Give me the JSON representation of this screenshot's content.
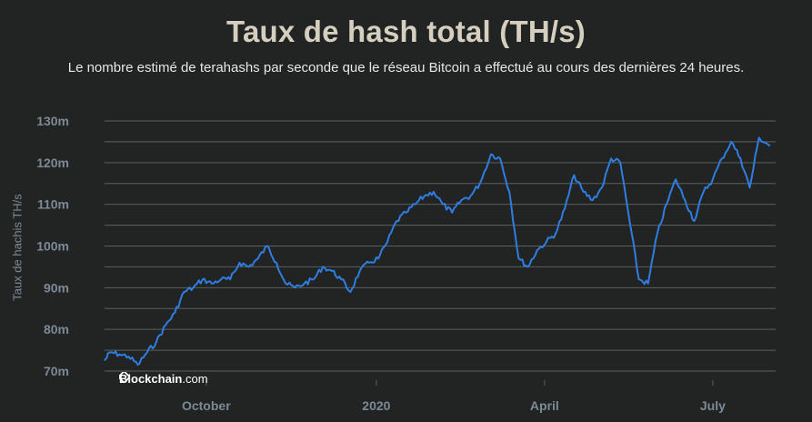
{
  "chart_data": {
    "type": "line",
    "title": "Taux de hash total (TH/s)",
    "subtitle": "Le nombre estimé de terahashs par seconde que le réseau Bitcoin a effectué au cours des dernières 24 heures.",
    "ylabel": "Taux de hachis TH/s",
    "xlabel": "",
    "y_ticks": [
      {
        "value": 70,
        "label": "70m"
      },
      {
        "value": 80,
        "label": "80m"
      },
      {
        "value": 90,
        "label": "90m"
      },
      {
        "value": 100,
        "label": "100m"
      },
      {
        "value": 110,
        "label": "110m"
      },
      {
        "value": 120,
        "label": "120m"
      },
      {
        "value": 130,
        "label": "130m"
      }
    ],
    "x_ticks": [
      {
        "date": "2019-10-01",
        "label": "October"
      },
      {
        "date": "2020-01-01",
        "label": "2020"
      },
      {
        "date": "2020-04-01",
        "label": "April"
      },
      {
        "date": "2020-07-01",
        "label": "July"
      }
    ],
    "xlim": [
      "2019-08-07",
      "2020-08-04"
    ],
    "ylim": [
      68,
      132
    ],
    "grid": true,
    "series": [
      {
        "color": "#2f7de1",
        "points": [
          [
            "2019-08-07",
            72.5
          ],
          [
            "2019-08-10",
            74.5
          ],
          [
            "2019-08-15",
            74
          ],
          [
            "2019-08-20",
            73.5
          ],
          [
            "2019-08-25",
            71.5
          ],
          [
            "2019-08-30",
            74.5
          ],
          [
            "2019-09-04",
            77
          ],
          [
            "2019-09-09",
            81
          ],
          [
            "2019-09-14",
            84
          ],
          [
            "2019-09-19",
            89
          ],
          [
            "2019-09-24",
            90
          ],
          [
            "2019-09-29",
            92
          ],
          [
            "2019-10-04",
            91
          ],
          [
            "2019-10-09",
            92
          ],
          [
            "2019-10-14",
            92
          ],
          [
            "2019-10-19",
            96
          ],
          [
            "2019-10-24",
            95
          ],
          [
            "2019-10-29",
            97
          ],
          [
            "2019-11-03",
            100
          ],
          [
            "2019-11-08",
            96
          ],
          [
            "2019-11-13",
            91
          ],
          [
            "2019-11-18",
            90
          ],
          [
            "2019-11-23",
            91
          ],
          [
            "2019-11-28",
            92
          ],
          [
            "2019-12-03",
            95
          ],
          [
            "2019-12-08",
            94
          ],
          [
            "2019-12-13",
            92
          ],
          [
            "2019-12-18",
            89
          ],
          [
            "2019-12-23",
            94
          ],
          [
            "2019-12-28",
            96
          ],
          [
            "2020-01-02",
            97
          ],
          [
            "2020-01-07",
            101
          ],
          [
            "2020-01-12",
            106
          ],
          [
            "2020-01-17",
            108
          ],
          [
            "2020-01-22",
            110
          ],
          [
            "2020-01-27",
            112
          ],
          [
            "2020-02-01",
            113
          ],
          [
            "2020-02-06",
            110
          ],
          [
            "2020-02-11",
            108
          ],
          [
            "2020-02-16",
            111
          ],
          [
            "2020-02-21",
            112
          ],
          [
            "2020-02-26",
            115
          ],
          [
            "2020-03-03",
            122
          ],
          [
            "2020-03-08",
            121
          ],
          [
            "2020-03-13",
            113
          ],
          [
            "2020-03-18",
            97
          ],
          [
            "2020-03-23",
            95
          ],
          [
            "2020-03-28",
            99
          ],
          [
            "2020-04-02",
            101
          ],
          [
            "2020-04-07",
            103
          ],
          [
            "2020-04-12",
            109
          ],
          [
            "2020-04-17",
            117
          ],
          [
            "2020-04-22",
            113
          ],
          [
            "2020-04-27",
            111
          ],
          [
            "2020-05-02",
            114
          ],
          [
            "2020-05-07",
            121
          ],
          [
            "2020-05-12",
            120
          ],
          [
            "2020-05-17",
            106
          ],
          [
            "2020-05-22",
            92
          ],
          [
            "2020-05-27",
            91
          ],
          [
            "2020-06-01",
            103
          ],
          [
            "2020-06-06",
            110
          ],
          [
            "2020-06-11",
            116
          ],
          [
            "2020-06-16",
            111
          ],
          [
            "2020-06-21",
            106
          ],
          [
            "2020-06-26",
            113
          ],
          [
            "2020-07-01",
            116
          ],
          [
            "2020-07-06",
            121
          ],
          [
            "2020-07-11",
            125
          ],
          [
            "2020-07-16",
            121
          ],
          [
            "2020-07-21",
            114
          ],
          [
            "2020-07-26",
            126
          ],
          [
            "2020-08-01",
            124
          ]
        ]
      }
    ]
  },
  "watermark": {
    "bold": "Blockchain",
    "rest": ".com"
  },
  "colors": {
    "line": "#2f7de1",
    "grid": "#5a5f61",
    "tick_label": "#7d8a96",
    "title": "#d6cfbf"
  }
}
